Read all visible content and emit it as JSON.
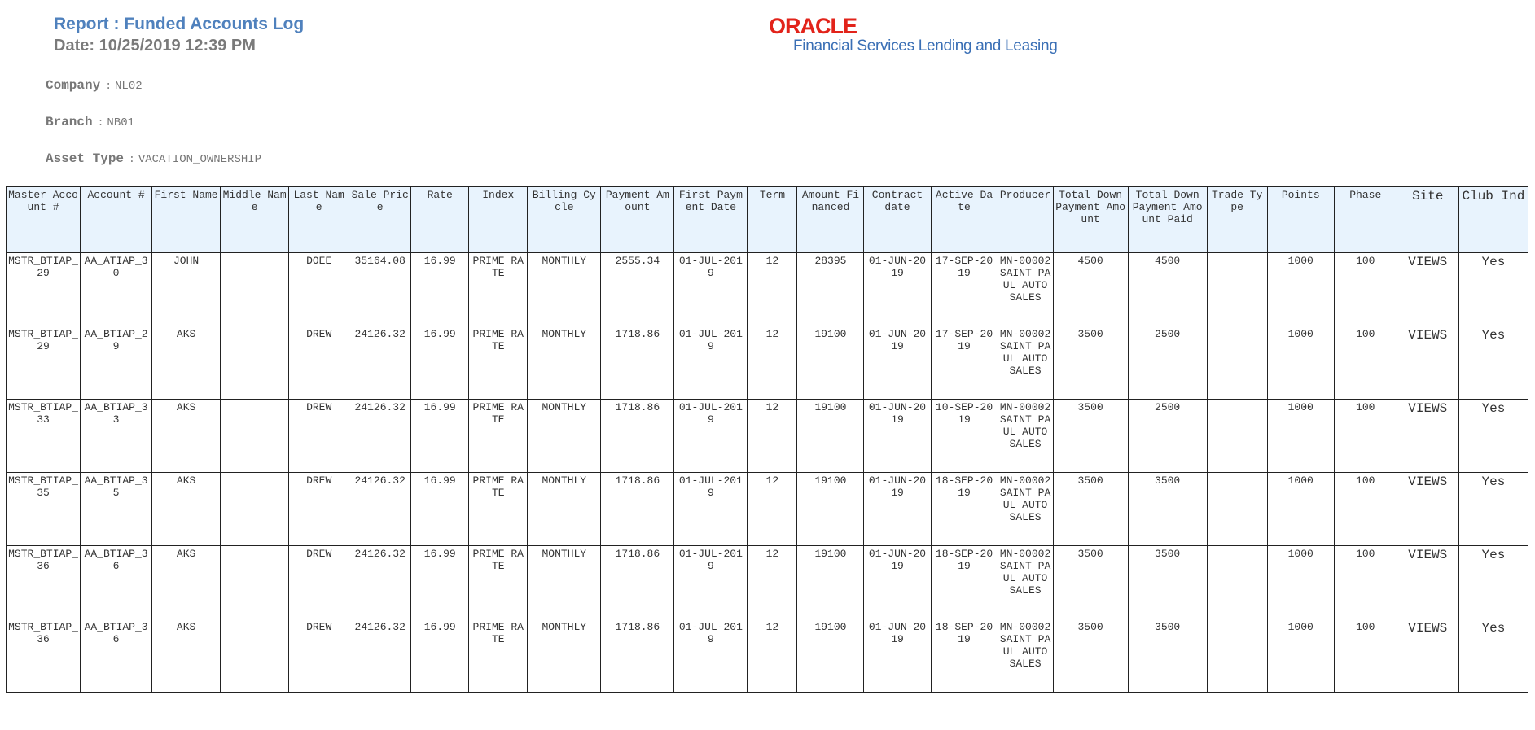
{
  "header": {
    "title": "Report : Funded Accounts Log",
    "date": "Date: 10/25/2019  12:39 PM",
    "logo_brand": "ORACLE",
    "logo_product": "Financial Services Lending and Leasing"
  },
  "filters": [
    {
      "label": "Company",
      "value": "NL02"
    },
    {
      "label": "Branch",
      "value": "NB01"
    },
    {
      "label": "Asset Type",
      "value": "VACATION_OWNERSHIP"
    }
  ],
  "colors": {
    "title": "#4f81bd",
    "header_bg": "#e8f3fd",
    "brand": "#e2231a"
  },
  "table": {
    "columns": [
      "Master Account #",
      "Account #",
      "First Name",
      "Middle Name",
      "Last Name",
      "Sale Price",
      "Rate",
      "Index",
      "Billing Cycle",
      "Payment Amount",
      "First Payment Date",
      "Term",
      "Amount Financed",
      "Contract date",
      "Active Date",
      "Producer",
      "Total Down Payment Amount",
      "Total Down Payment Amount Paid",
      "Trade Type",
      "Points",
      "Phase",
      "Site",
      "Club Ind"
    ],
    "rows": [
      [
        "MSTR_BTIAP_29",
        "AA_ATIAP_30",
        "JOHN",
        "",
        "DOEE",
        "35164.08",
        "16.99",
        "PRIME RATE",
        "MONTHLY",
        "2555.34",
        "01-JUL-2019",
        "12",
        "28395",
        "01-JUN-2019",
        "17-SEP-2019",
        "MN-00002 SAINT PAUL AUTO SALES",
        "4500",
        "4500",
        "",
        "1000",
        "100",
        "VIEWS",
        "Yes"
      ],
      [
        "MSTR_BTIAP_29",
        "AA_BTIAP_29",
        "AKS",
        "",
        "DREW",
        "24126.32",
        "16.99",
        "PRIME RATE",
        "MONTHLY",
        "1718.86",
        "01-JUL-2019",
        "12",
        "19100",
        "01-JUN-2019",
        "17-SEP-2019",
        "MN-00002 SAINT PAUL AUTO SALES",
        "3500",
        "2500",
        "",
        "1000",
        "100",
        "VIEWS",
        "Yes"
      ],
      [
        "MSTR_BTIAP_33",
        "AA_BTIAP_33",
        "AKS",
        "",
        "DREW",
        "24126.32",
        "16.99",
        "PRIME RATE",
        "MONTHLY",
        "1718.86",
        "01-JUL-2019",
        "12",
        "19100",
        "01-JUN-2019",
        "10-SEP-2019",
        "MN-00002 SAINT PAUL AUTO SALES",
        "3500",
        "2500",
        "",
        "1000",
        "100",
        "VIEWS",
        "Yes"
      ],
      [
        "MSTR_BTIAP_35",
        "AA_BTIAP_35",
        "AKS",
        "",
        "DREW",
        "24126.32",
        "16.99",
        "PRIME RATE",
        "MONTHLY",
        "1718.86",
        "01-JUL-2019",
        "12",
        "19100",
        "01-JUN-2019",
        "18-SEP-2019",
        "MN-00002 SAINT PAUL AUTO SALES",
        "3500",
        "3500",
        "",
        "1000",
        "100",
        "VIEWS",
        "Yes"
      ],
      [
        "MSTR_BTIAP_36",
        "AA_BTIAP_36",
        "AKS",
        "",
        "DREW",
        "24126.32",
        "16.99",
        "PRIME RATE",
        "MONTHLY",
        "1718.86",
        "01-JUL-2019",
        "12",
        "19100",
        "01-JUN-2019",
        "18-SEP-2019",
        "MN-00002 SAINT PAUL AUTO SALES",
        "3500",
        "3500",
        "",
        "1000",
        "100",
        "VIEWS",
        "Yes"
      ],
      [
        "MSTR_BTIAP_36",
        "AA_BTIAP_36",
        "AKS",
        "",
        "DREW",
        "24126.32",
        "16.99",
        "PRIME RATE",
        "MONTHLY",
        "1718.86",
        "01-JUL-2019",
        "12",
        "19100",
        "01-JUN-2019",
        "18-SEP-2019",
        "MN-00002 SAINT PAUL AUTO SALES",
        "3500",
        "3500",
        "",
        "1000",
        "100",
        "VIEWS",
        "Yes"
      ]
    ]
  }
}
